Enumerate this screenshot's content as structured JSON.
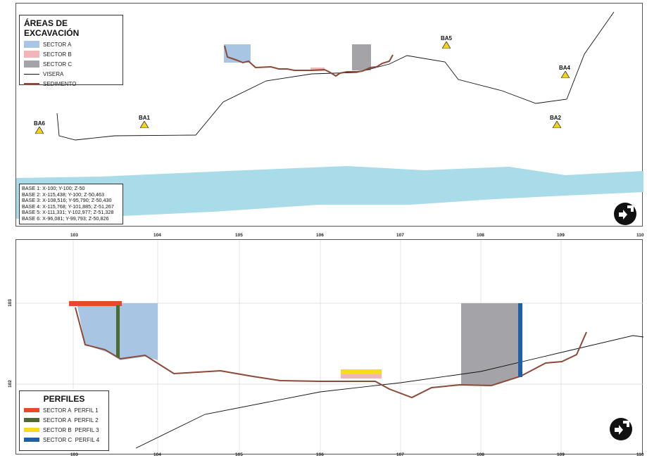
{
  "top_panel": {
    "legend": {
      "title": "ÁREAS DE EXCAVACIÓN",
      "items": [
        {
          "label": "SECTOR A",
          "color": "#a9c5e4",
          "kind": "fill"
        },
        {
          "label": "SECTOR B",
          "color": "#f1b6b8",
          "kind": "fill"
        },
        {
          "label": "SECTOR C",
          "color": "#a4a4a8",
          "kind": "fill"
        },
        {
          "label": "VISERA",
          "color": "#111111",
          "kind": "thin-line"
        },
        {
          "label": "SEDIMENTO",
          "color": "#8b4a38",
          "kind": "thick-line"
        }
      ]
    },
    "stations": [
      "BA1",
      "BA2",
      "BA4",
      "BA5",
      "BA6"
    ],
    "bases": [
      "BASE 1: X-100; Y-100; Z-50",
      "BASE 2: X-115,438; Y-100; Z-50,463",
      "BASE 3: X-108,516; Y-95,790; Z-50,430",
      "BASE 4: X-115,768; Y-101,885; Z-51,267",
      "BASE 5: X-111,331; Y-102,977; Z-51,328",
      "BASE 6: X-96,081; Y-99,793; Z-50,826"
    ],
    "colors": {
      "river": "#a9dbe8",
      "visera": "#111111",
      "sedimento": "#8b4a38"
    }
  },
  "bottom_panel": {
    "x_ticks": [
      "103",
      "104",
      "105",
      "106",
      "107",
      "108",
      "109",
      "110"
    ],
    "y_ticks": [
      "103",
      "102"
    ],
    "legend": {
      "title": "PERFILES",
      "items": [
        {
          "label": "SECTOR A  PERFIL 1",
          "color": "#e8482b"
        },
        {
          "label": "SECTOR A  PERFIL 2",
          "color": "#4b6b33"
        },
        {
          "label": "SECTOR B  PERFIL 3",
          "color": "#f5dc1c"
        },
        {
          "label": "SECTOR C  PERFIL 4",
          "color": "#1f5fa8"
        }
      ]
    }
  },
  "icons": {
    "north": "north-arrow-icon",
    "station": "warning-triangle-icon"
  }
}
